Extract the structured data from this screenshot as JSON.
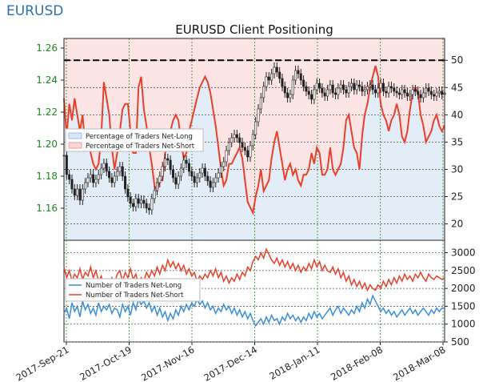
{
  "brand": "EURUSD",
  "chart_data": [
    {
      "type": "line",
      "title": "EURUSD Client Positioning",
      "y_left_ticks": [
        "1.16",
        "1.18",
        "1.20",
        "1.22",
        "1.24",
        "1.26"
      ],
      "y_left_range": [
        1.14,
        1.266
      ],
      "y_right_ticks": [
        "20",
        "25",
        "30",
        "35",
        "40",
        "45",
        "50"
      ],
      "y_right_range": [
        17,
        54
      ],
      "dashed_reference": 50,
      "grid": true,
      "legend_position": "middle-left",
      "legend": [
        "Percentage of Traders Net-Long",
        "Percentage of Traders Net-Short"
      ],
      "series": [
        {
          "name": "Percentage of Traders Net-Short",
          "color": "#e8402a",
          "values": [
            43,
            36,
            42,
            39,
            43,
            40,
            37,
            40,
            34,
            37,
            33,
            31,
            30,
            31,
            36,
            46,
            43,
            40,
            34,
            30,
            33,
            37,
            41,
            42,
            42,
            37,
            33,
            33,
            45,
            47,
            41,
            38,
            34,
            31,
            27,
            26,
            28,
            28,
            33,
            35,
            37,
            39,
            40,
            39,
            35,
            32,
            33,
            37,
            39,
            41,
            43,
            45,
            46,
            47,
            46,
            44,
            41,
            38,
            34,
            30,
            27,
            28,
            31,
            31,
            32,
            33,
            34,
            32,
            28,
            24,
            23,
            22,
            25,
            27,
            30,
            26,
            27,
            28,
            32,
            35,
            37,
            34,
            31,
            28,
            30,
            31,
            29,
            30,
            28,
            27,
            29,
            29,
            30,
            33,
            31,
            34,
            33,
            29,
            29,
            30,
            34,
            30,
            29,
            30,
            31,
            34,
            39,
            40,
            37,
            34,
            33,
            30,
            36,
            40,
            42,
            45,
            47,
            49,
            47,
            42,
            40,
            39,
            37,
            39,
            40,
            42,
            40,
            36,
            35,
            37,
            41,
            44,
            45,
            44,
            40,
            38,
            35,
            36,
            37,
            39,
            40,
            38,
            37,
            38
          ]
        },
        {
          "name": "EURUSD",
          "color": "#111111",
          "values": [
            1.193,
            1.181,
            1.178,
            1.172,
            1.168,
            1.172,
            1.165,
            1.172,
            1.176,
            1.179,
            1.181,
            1.176,
            1.178,
            1.181,
            1.185,
            1.188,
            1.183,
            1.179,
            1.176,
            1.18,
            1.183,
            1.186,
            1.18,
            1.172,
            1.167,
            1.163,
            1.161,
            1.166,
            1.163,
            1.165,
            1.163,
            1.16,
            1.159,
            1.166,
            1.171,
            1.176,
            1.18,
            1.186,
            1.191,
            1.19,
            1.184,
            1.179,
            1.175,
            1.18,
            1.185,
            1.19,
            1.188,
            1.183,
            1.18,
            1.176,
            1.179,
            1.182,
            1.185,
            1.18,
            1.177,
            1.173,
            1.176,
            1.179,
            1.182,
            1.186,
            1.189,
            1.196,
            1.201,
            1.204,
            1.206,
            1.204,
            1.201,
            1.198,
            1.196,
            1.192,
            1.199,
            1.206,
            1.214,
            1.222,
            1.229,
            1.236,
            1.242,
            1.24,
            1.244,
            1.248,
            1.245,
            1.241,
            1.236,
            1.232,
            1.229,
            1.231,
            1.24,
            1.246,
            1.244,
            1.24,
            1.236,
            1.233,
            1.231,
            1.228,
            1.234,
            1.238,
            1.235,
            1.232,
            1.23,
            1.234,
            1.237,
            1.232,
            1.231,
            1.235,
            1.237,
            1.234,
            1.232,
            1.236,
            1.238,
            1.234,
            1.237,
            1.236,
            1.233,
            1.234,
            1.236,
            1.237,
            1.234,
            1.232,
            1.235,
            1.238,
            1.233,
            1.232,
            1.236,
            1.235,
            1.233,
            1.232,
            1.231,
            1.234,
            1.232,
            1.23,
            1.231,
            1.234,
            1.233,
            1.231,
            1.229,
            1.232,
            1.235,
            1.233,
            1.231,
            1.23,
            1.232,
            1.233,
            1.231,
            1.232
          ]
        }
      ]
    },
    {
      "type": "line",
      "y_ticks": [
        "500",
        "1000",
        "1500",
        "2000",
        "2500",
        "3000"
      ],
      "y_range": [
        500,
        3350
      ],
      "x_ticks": [
        "2017-Sep-21",
        "2017-Oct-19",
        "2017-Nov-16",
        "2017-Dec-14",
        "2018-Jan-11",
        "2018-Feb-08",
        "2018-Mar-08"
      ],
      "grid": true,
      "legend_position": "upper-left",
      "legend": [
        "Number of Traders Net-Long",
        "Number of Traders Net-Short"
      ],
      "series": [
        {
          "name": "Number of Traders Net-Long",
          "color": "#3a8fd8",
          "values": [
            1300,
            1450,
            1150,
            1600,
            1350,
            1500,
            1200,
            1650,
            1400,
            1550,
            1300,
            1450,
            1250,
            1600,
            1350,
            1500,
            1400,
            1550,
            1300,
            1450,
            1400,
            1200,
            1550,
            1350,
            1500,
            1250,
            1600,
            1400,
            1700,
            1550,
            1650,
            1450,
            1600,
            1350,
            1500,
            1250,
            1450,
            1200,
            1350,
            1100,
            1300,
            1150,
            1400,
            1250,
            1500,
            1350,
            1550,
            1400,
            1600,
            1500,
            1700,
            1550,
            1650,
            1450,
            1600,
            1400,
            1500,
            1300,
            1450,
            1350,
            1550,
            1400,
            1500,
            1300,
            1450,
            1250,
            1400,
            1200,
            1350,
            1150,
            1300,
            1100,
            950,
            1050,
            1150,
            1000,
            1200,
            1050,
            1250,
            1100,
            1150,
            1000,
            1200,
            1100,
            1300,
            1150,
            1250,
            1100,
            1200,
            1050,
            1200,
            1100,
            1300,
            1150,
            1350,
            1200,
            1300,
            1150,
            1250,
            1350,
            1450,
            1250,
            1400,
            1500,
            1300,
            1450,
            1350,
            1250,
            1400,
            1300,
            1500,
            1350,
            1600,
            1450,
            1700,
            1550,
            1800,
            1650,
            1500,
            1350,
            1450,
            1300,
            1400,
            1250,
            1350,
            1200,
            1300,
            1400,
            1250,
            1350,
            1450,
            1300,
            1400,
            1250,
            1350,
            1450,
            1350,
            1250,
            1400,
            1300,
            1450,
            1350,
            1450,
            1450
          ]
        },
        {
          "name": "Number of Traders Net-Short",
          "color": "#e8402a",
          "values": [
            2600,
            2300,
            2500,
            2200,
            2400,
            2300,
            2550,
            2250,
            2450,
            2350,
            2600,
            2300,
            2500,
            2200,
            2350,
            2100,
            2250,
            2050,
            2300,
            2150,
            2400,
            2500,
            2200,
            2450,
            2300,
            2550,
            2250,
            2400,
            2100,
            2300,
            2200,
            2450,
            2300,
            2500,
            2350,
            2600,
            2400,
            2650,
            2500,
            2800,
            2600,
            2750,
            2550,
            2700,
            2500,
            2650,
            2400,
            2550,
            2350,
            2450,
            2200,
            2350,
            2250,
            2400,
            2300,
            2500,
            2350,
            2550,
            2300,
            2450,
            2200,
            2350,
            2150,
            2300,
            2200,
            2400,
            2250,
            2450,
            2350,
            2600,
            2500,
            2750,
            2900,
            2800,
            3000,
            2850,
            3100,
            2950,
            2800,
            2700,
            2850,
            2650,
            2800,
            2600,
            2750,
            2550,
            2700,
            2500,
            2650,
            2450,
            2600,
            2500,
            2700,
            2550,
            2800,
            2600,
            2750,
            2500,
            2650,
            2500,
            2450,
            2600,
            2400,
            2550,
            2300,
            2450,
            2200,
            2350,
            2100,
            2250,
            2050,
            2200,
            2000,
            2150,
            1950,
            2100,
            2000,
            1950,
            2100,
            2000,
            2200,
            2050,
            2250,
            2100,
            2300,
            2150,
            2350,
            2200,
            2400,
            2250,
            2350,
            2200,
            2400,
            2300,
            2450,
            2300,
            2200,
            2400,
            2300,
            2250,
            2350,
            2300,
            2250,
            2300
          ]
        }
      ]
    }
  ]
}
